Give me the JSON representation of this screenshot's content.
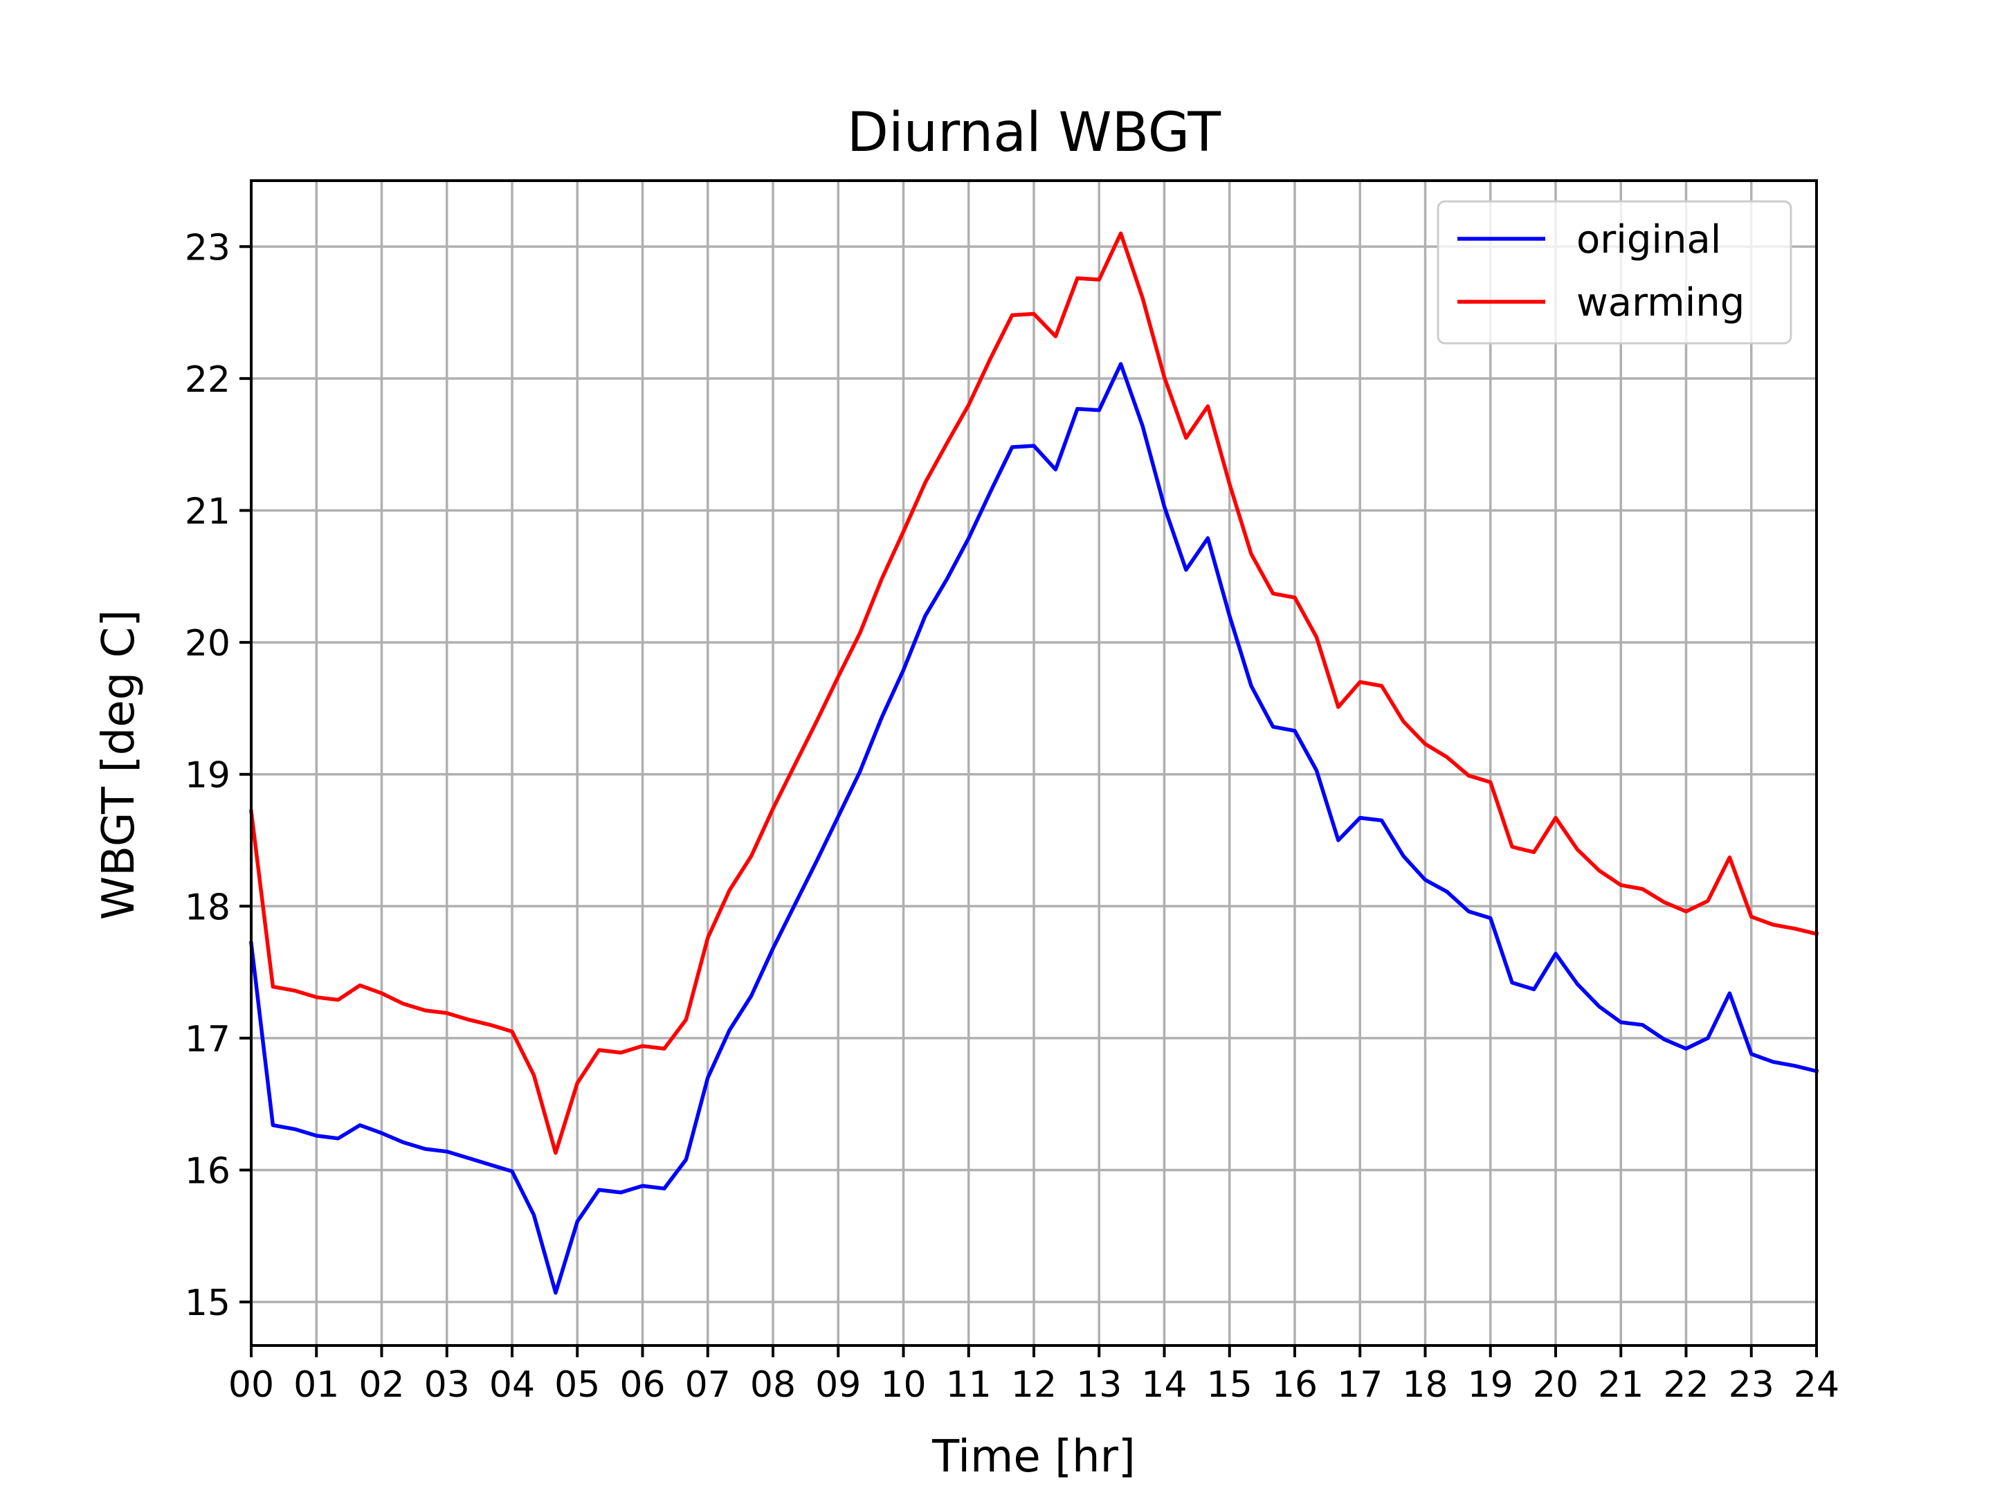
{
  "chart_data": {
    "type": "line",
    "title": "Diurnal WBGT",
    "xlabel": "Time [hr]",
    "ylabel": "WBGT [deg C]",
    "xlim": [
      0,
      24
    ],
    "ylim": [
      14.67,
      23.5
    ],
    "x_ticks": [
      "00",
      "01",
      "02",
      "03",
      "04",
      "05",
      "06",
      "07",
      "08",
      "09",
      "10",
      "11",
      "12",
      "13",
      "14",
      "15",
      "16",
      "17",
      "18",
      "19",
      "20",
      "21",
      "22",
      "23",
      "24"
    ],
    "y_ticks": [
      15,
      16,
      17,
      18,
      19,
      20,
      21,
      22,
      23
    ],
    "grid": true,
    "legend_position": "upper right",
    "x": [
      0,
      0.333,
      0.667,
      1,
      1.333,
      1.667,
      2,
      2.333,
      2.667,
      3,
      3.333,
      3.667,
      4,
      4.333,
      4.667,
      5,
      5.333,
      5.667,
      6,
      6.333,
      6.667,
      7,
      7.333,
      7.667,
      8,
      8.333,
      8.667,
      9,
      9.333,
      9.667,
      10,
      10.333,
      10.667,
      11,
      11.333,
      11.667,
      12,
      12.333,
      12.667,
      13,
      13.333,
      13.667,
      14,
      14.333,
      14.667,
      15,
      15.333,
      15.667,
      16,
      16.333,
      16.667,
      17,
      17.333,
      17.667,
      18,
      18.333,
      18.667,
      19,
      19.333,
      19.667,
      20,
      20.333,
      20.667,
      21,
      21.333,
      21.667,
      22,
      22.333,
      22.667,
      23,
      23.333,
      23.667,
      24
    ],
    "series": [
      {
        "name": "original",
        "color": "#0000ff",
        "values": [
          17.72,
          16.34,
          16.31,
          16.26,
          16.24,
          16.34,
          16.28,
          16.21,
          16.16,
          16.14,
          16.09,
          16.04,
          15.99,
          15.66,
          15.07,
          15.61,
          15.85,
          15.83,
          15.88,
          15.86,
          16.08,
          16.7,
          17.06,
          17.32,
          17.68,
          18.01,
          18.34,
          18.68,
          19.02,
          19.43,
          19.79,
          20.2,
          20.48,
          20.79,
          21.14,
          21.48,
          21.49,
          21.31,
          21.77,
          21.76,
          22.11,
          21.64,
          21.03,
          20.55,
          20.79,
          20.2,
          19.67,
          19.36,
          19.33,
          19.03,
          18.5,
          18.67,
          18.65,
          18.38,
          18.2,
          18.11,
          17.96,
          17.91,
          17.42,
          17.37,
          17.64,
          17.41,
          17.24,
          17.12,
          17.1,
          16.99,
          16.92,
          17.0,
          17.34,
          16.88,
          16.82,
          16.79,
          16.75
        ]
      },
      {
        "name": "warming",
        "color": "#ff0000",
        "values": [
          18.72,
          17.39,
          17.36,
          17.31,
          17.29,
          17.4,
          17.34,
          17.26,
          17.21,
          17.19,
          17.14,
          17.1,
          17.05,
          16.72,
          16.13,
          16.66,
          16.91,
          16.89,
          16.94,
          16.92,
          17.14,
          17.76,
          18.12,
          18.38,
          18.74,
          19.07,
          19.4,
          19.74,
          20.07,
          20.48,
          20.84,
          21.21,
          21.51,
          21.8,
          22.15,
          22.48,
          22.49,
          22.32,
          22.76,
          22.75,
          23.1,
          22.61,
          22.01,
          21.55,
          21.79,
          21.2,
          20.67,
          20.37,
          20.34,
          20.04,
          19.51,
          19.7,
          19.67,
          19.4,
          19.23,
          19.13,
          18.99,
          18.94,
          18.45,
          18.41,
          18.67,
          18.43,
          18.27,
          18.16,
          18.13,
          18.03,
          17.96,
          18.04,
          18.37,
          17.92,
          17.86,
          17.83,
          17.79
        ]
      }
    ]
  }
}
